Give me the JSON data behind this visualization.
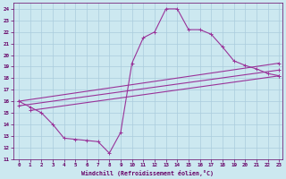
{
  "xlabel": "Windchill (Refroidissement éolien,°C)",
  "bg_color": "#cce8f0",
  "grid_color": "#aaccdd",
  "line_color": "#993399",
  "xlim": [
    -0.5,
    23.3
  ],
  "ylim": [
    11,
    24.5
  ],
  "xticks": [
    0,
    1,
    2,
    3,
    4,
    5,
    6,
    7,
    8,
    9,
    10,
    11,
    12,
    13,
    14,
    15,
    16,
    17,
    18,
    19,
    20,
    21,
    22,
    23
  ],
  "yticks": [
    11,
    12,
    13,
    14,
    15,
    16,
    17,
    18,
    19,
    20,
    21,
    22,
    23,
    24
  ],
  "series": [
    {
      "x": [
        0,
        1,
        2,
        3,
        4,
        5,
        6,
        7,
        8,
        9,
        10,
        11,
        12,
        13,
        14,
        15,
        16,
        17,
        18,
        19,
        20,
        21,
        22,
        23
      ],
      "y": [
        16.0,
        15.5,
        15.0,
        14.0,
        12.8,
        12.7,
        12.6,
        12.5,
        11.5,
        13.3,
        19.3,
        21.5,
        22.0,
        24.0,
        24.0,
        22.2,
        22.2,
        21.8,
        20.7,
        19.5,
        19.1,
        18.8,
        18.4,
        18.2
      ]
    },
    {
      "x": [
        0,
        23
      ],
      "y": [
        16.0,
        19.3
      ]
    },
    {
      "x": [
        0,
        23
      ],
      "y": [
        15.6,
        18.7
      ]
    },
    {
      "x": [
        1,
        23
      ],
      "y": [
        15.2,
        18.2
      ]
    }
  ]
}
